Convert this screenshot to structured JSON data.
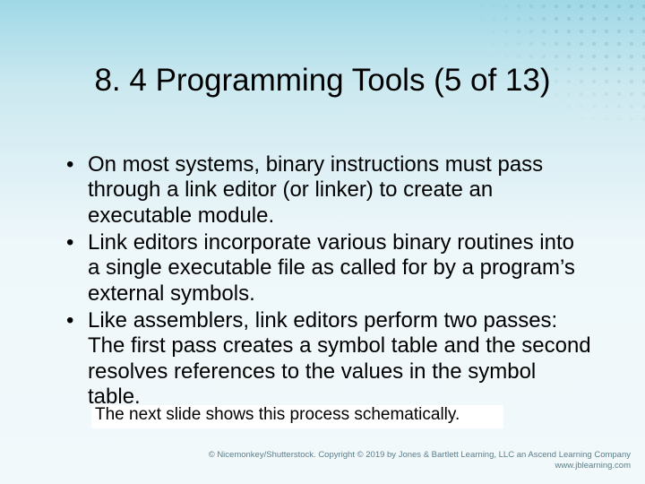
{
  "background": {
    "gradient_top": "#9fd8e6",
    "gradient_mid": "#cce9f0",
    "gradient_bottom": "#f2f9fb",
    "dot_color": "#5a7d89",
    "dot_opacity": 0.18
  },
  "title": {
    "text": "8. 4 Programming Tools (5 of 13)",
    "fontsize": 35,
    "color": "#000000"
  },
  "bullets": {
    "fontsize": 24,
    "color": "#000000",
    "items": [
      "On most systems, binary instructions must pass through a link editor (or linker) to create an executable module.",
      "Link editors incorporate various binary routines into a single executable file as called for by a program’s external symbols.",
      "Like assemblers, link editors perform two passes: The first pass creates a symbol table and the second resolves references to the values in the symbol table."
    ]
  },
  "note": {
    "text": "The next slide shows this process schematically.",
    "fontsize": 19,
    "bg": "#ffffff"
  },
  "copyright": {
    "line1": "© Nicemonkey/Shutterstock. Copyright © 2019 by Jones & Bartlett Learning, LLC an Ascend Learning Company",
    "line2": "www.jblearning.com",
    "color": "#5b7e8b",
    "fontsize": 9.5
  }
}
